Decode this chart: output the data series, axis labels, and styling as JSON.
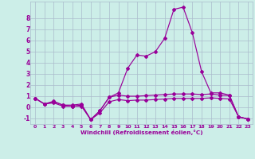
{
  "xlabel": "Windchill (Refroidissement éolien,°C)",
  "bg_color": "#cceee8",
  "grid_color": "#aabbcc",
  "line_color": "#990099",
  "x_values": [
    0,
    1,
    2,
    3,
    4,
    5,
    6,
    7,
    8,
    9,
    10,
    11,
    12,
    13,
    14,
    15,
    16,
    17,
    18,
    19,
    20,
    21,
    22,
    23
  ],
  "line1_y": [
    0.8,
    0.3,
    0.55,
    0.2,
    0.1,
    0.2,
    -1.1,
    -0.3,
    0.9,
    1.1,
    1.0,
    1.0,
    1.05,
    1.1,
    1.15,
    1.2,
    1.2,
    1.2,
    1.15,
    1.2,
    1.1,
    1.05,
    -0.85,
    -1.05
  ],
  "line2_y": [
    0.8,
    0.3,
    0.4,
    0.1,
    0.1,
    0.1,
    -1.1,
    -0.5,
    0.5,
    0.7,
    0.6,
    0.65,
    0.65,
    0.7,
    0.75,
    0.8,
    0.8,
    0.8,
    0.8,
    0.85,
    0.8,
    0.75,
    -0.85,
    -1.05
  ],
  "line3_y": [
    0.8,
    0.3,
    0.5,
    0.2,
    0.2,
    0.3,
    -1.1,
    -0.3,
    0.9,
    1.3,
    3.5,
    4.7,
    4.6,
    5.0,
    6.2,
    8.8,
    9.0,
    6.7,
    3.2,
    1.3,
    1.3,
    1.1,
    -0.85,
    -1.05
  ],
  "ylim": [
    -1.5,
    9.5
  ],
  "yticks": [
    -1,
    0,
    1,
    2,
    3,
    4,
    5,
    6,
    7,
    8
  ],
  "xlim": [
    -0.5,
    23.5
  ],
  "xticks": [
    0,
    1,
    2,
    3,
    4,
    5,
    6,
    7,
    8,
    9,
    10,
    11,
    12,
    13,
    14,
    15,
    16,
    17,
    18,
    19,
    20,
    21,
    22,
    23
  ]
}
